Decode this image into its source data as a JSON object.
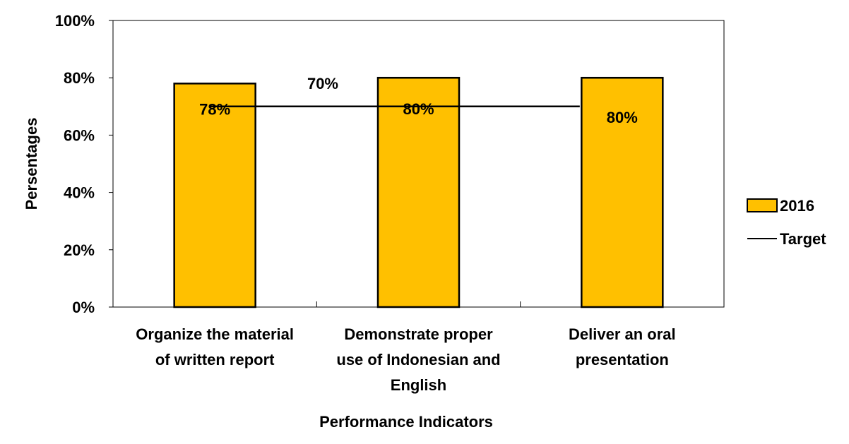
{
  "chart_data": {
    "type": "bar",
    "categories": [
      [
        "Organize the material",
        "of written report"
      ],
      [
        "Demonstrate proper",
        "use of Indonesian and",
        "English"
      ],
      [
        "Deliver an oral",
        "presentation"
      ]
    ],
    "series": [
      {
        "name": "2016",
        "values": [
          78,
          80,
          80
        ],
        "labels": [
          "78%",
          "80%",
          "80%"
        ],
        "color": "#FFC000"
      }
    ],
    "target": {
      "name": "Target",
      "value": 70,
      "label": "70%",
      "color": "#000000"
    },
    "ylabel": "Persentages",
    "xlabel": "Performance Indicators",
    "ylim": [
      0,
      100
    ],
    "yticks": [
      "0%",
      "20%",
      "40%",
      "60%",
      "80%",
      "100%"
    ],
    "ytick_values": [
      0,
      20,
      40,
      60,
      80,
      100
    ],
    "grid": false,
    "legend_position": "right"
  }
}
